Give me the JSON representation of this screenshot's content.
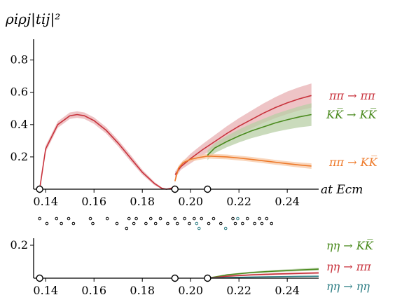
{
  "chart_data": [
    {
      "type": "line",
      "ylabel": "ρiρj|tij|²",
      "xlabel": "at Ecm",
      "xlim": [
        0.135,
        0.253
      ],
      "ylim": [
        0,
        0.92
      ],
      "xticks": [
        "0.14",
        "0.16",
        "0.18",
        "0.20",
        "0.22",
        "0.24"
      ],
      "yticks": [
        "0.2",
        "0.4",
        "0.6",
        "0.8"
      ],
      "thresholds": [
        0.1375,
        0.1935,
        0.207
      ],
      "series": [
        {
          "name": "ππ → ππ",
          "color": "#c8323c",
          "band_color": "#e8b0b3",
          "x": [
            0.1375,
            0.14,
            0.145,
            0.15,
            0.153,
            0.156,
            0.16,
            0.165,
            0.17,
            0.175,
            0.18,
            0.185,
            0.188,
            0.19,
            0.192,
            0.1935,
            0.1936,
            0.196,
            0.2,
            0.205,
            0.21,
            0.215,
            0.22,
            0.225,
            0.23,
            0.235,
            0.24,
            0.245,
            0.25
          ],
          "y": [
            0.0,
            0.25,
            0.4,
            0.455,
            0.462,
            0.455,
            0.425,
            0.365,
            0.285,
            0.195,
            0.105,
            0.035,
            0.006,
            0.0,
            0.006,
            0.018,
            0.09,
            0.14,
            0.19,
            0.245,
            0.295,
            0.345,
            0.39,
            0.43,
            0.47,
            0.505,
            0.535,
            0.56,
            0.58
          ],
          "err": [
            0.0,
            0.02,
            0.02,
            0.02,
            0.02,
            0.02,
            0.02,
            0.02,
            0.02,
            0.02,
            0.015,
            0.01,
            0.005,
            0.0,
            0.005,
            0.008,
            0.02,
            0.02,
            0.03,
            0.035,
            0.04,
            0.045,
            0.05,
            0.055,
            0.06,
            0.065,
            0.07,
            0.072,
            0.075
          ]
        },
        {
          "name": "KK̅ → KK̅",
          "color": "#4a8a1e",
          "band_color": "#b8cfa6",
          "x": [
            0.207,
            0.21,
            0.215,
            0.22,
            0.225,
            0.23,
            0.235,
            0.24,
            0.245,
            0.25
          ],
          "y": [
            0.21,
            0.255,
            0.295,
            0.33,
            0.36,
            0.385,
            0.41,
            0.43,
            0.448,
            0.462
          ],
          "err": [
            0.03,
            0.03,
            0.035,
            0.04,
            0.045,
            0.05,
            0.055,
            0.06,
            0.065,
            0.07
          ]
        },
        {
          "name": "ππ → KK̅",
          "color": "#ee7a2a",
          "band_color": "#f7c8a6",
          "x": [
            0.1935,
            0.195,
            0.197,
            0.2,
            0.203,
            0.205,
            0.207,
            0.21,
            0.215,
            0.22,
            0.225,
            0.23,
            0.235,
            0.24,
            0.245,
            0.25
          ],
          "y": [
            0.05,
            0.13,
            0.165,
            0.185,
            0.195,
            0.2,
            0.205,
            0.203,
            0.2,
            0.193,
            0.185,
            0.176,
            0.167,
            0.158,
            0.15,
            0.143
          ],
          "err": [
            0.01,
            0.015,
            0.015,
            0.015,
            0.015,
            0.015,
            0.015,
            0.015,
            0.015,
            0.015,
            0.015,
            0.015,
            0.015,
            0.015,
            0.016,
            0.017
          ]
        }
      ]
    },
    {
      "type": "line",
      "xlabel": "",
      "ylabel": "",
      "xlim": [
        0.135,
        0.253
      ],
      "ylim": [
        0,
        0.2
      ],
      "xticks": [
        "0.14",
        "0.16",
        "0.18",
        "0.20",
        "0.22",
        "0.24"
      ],
      "yticks": [
        "0.2"
      ],
      "thresholds": [
        0.1375,
        0.1935,
        0.207
      ],
      "series": [
        {
          "name": "ηη → KK̅",
          "color": "#4a8a1e",
          "band_color": "#b8cfa6",
          "x": [
            0.207,
            0.215,
            0.225,
            0.235,
            0.245,
            0.253
          ],
          "y": [
            0.0,
            0.02,
            0.034,
            0.043,
            0.05,
            0.055
          ],
          "err": [
            0.0,
            0.004,
            0.006,
            0.007,
            0.008,
            0.009
          ]
        },
        {
          "name": "ηη → ππ",
          "color": "#c8323c",
          "band_color": "#e8b0b3",
          "x": [
            0.207,
            0.215,
            0.225,
            0.235,
            0.245,
            0.253
          ],
          "y": [
            0.0,
            0.012,
            0.02,
            0.025,
            0.029,
            0.032
          ],
          "err": [
            0.0,
            0.004,
            0.005,
            0.006,
            0.006,
            0.007
          ]
        },
        {
          "name": "ηη → ηη",
          "color": "#2f7f86",
          "band_color": "#a9cdd0",
          "x": [
            0.207,
            0.215,
            0.225,
            0.235,
            0.245,
            0.253
          ],
          "y": [
            0.0,
            0.004,
            0.007,
            0.009,
            0.011,
            0.012
          ],
          "err": [
            0.0,
            0.002,
            0.003,
            0.003,
            0.003,
            0.003
          ]
        }
      ]
    }
  ],
  "energy_levels": {
    "x": [
      0.1375,
      0.1405,
      0.1445,
      0.1465,
      0.1495,
      0.1515,
      0.1585,
      0.1595,
      0.1655,
      0.1695,
      0.1735,
      0.1745,
      0.1765,
      0.1775,
      0.1815,
      0.1835,
      0.1855,
      0.1875,
      0.1905,
      0.1935,
      0.1945,
      0.1975,
      0.1995,
      0.2015,
      0.2025,
      0.2035,
      0.2045,
      0.2075,
      0.2095,
      0.2125,
      0.2145,
      0.2175,
      0.2185,
      0.2195,
      0.2215,
      0.2235,
      0.2265,
      0.2285,
      0.2295,
      0.2315,
      0.2335
    ],
    "row": [
      0,
      1,
      0,
      1,
      0,
      1,
      0,
      1,
      0,
      1,
      2,
      0,
      1,
      0,
      1,
      0,
      1,
      0,
      1,
      0,
      1,
      0,
      1,
      0,
      1,
      2,
      0,
      1,
      0,
      1,
      2,
      0,
      1,
      0,
      1,
      0,
      1,
      0,
      1,
      0,
      1
    ],
    "teal": [
      0,
      0,
      0,
      0,
      0,
      0,
      0,
      0,
      0,
      0,
      0,
      0,
      0,
      0,
      0,
      0,
      0,
      0,
      0,
      0,
      0,
      0,
      0,
      0,
      1,
      1,
      0,
      0,
      0,
      0,
      1,
      0,
      0,
      1,
      0,
      0,
      0,
      0,
      0,
      0,
      0
    ],
    "teal_color": "#2f7f86"
  }
}
